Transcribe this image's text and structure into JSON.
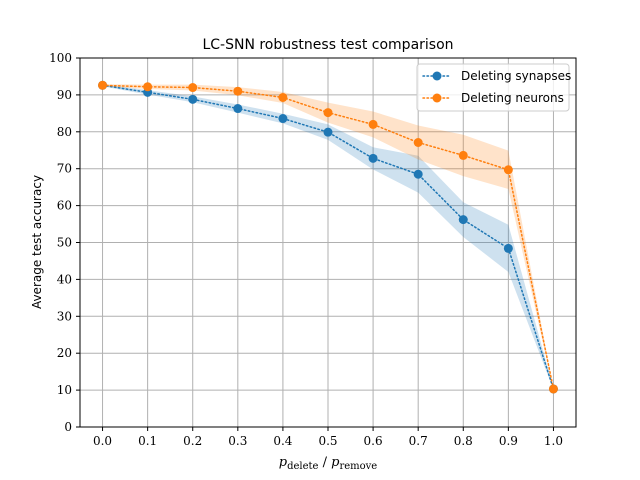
{
  "chart_data": {
    "type": "line",
    "title": "LC-SNN robustness test comparison",
    "xlabel": "p_delete / p_remove",
    "xlabel_main": "p",
    "xlabel_sub1": "delete",
    "xlabel_sep": " / ",
    "xlabel_sub2": "remove",
    "ylabel": "Average test accuracy",
    "xlim": [
      -0.05,
      1.05
    ],
    "ylim": [
      0,
      100
    ],
    "xticks": [
      0.0,
      0.1,
      0.2,
      0.3,
      0.4,
      0.5,
      0.6,
      0.7,
      0.8,
      0.9,
      1.0
    ],
    "xtick_labels": [
      "0.0",
      "0.1",
      "0.2",
      "0.3",
      "0.4",
      "0.5",
      "0.6",
      "0.7",
      "0.8",
      "0.9",
      "1.0"
    ],
    "yticks": [
      0,
      10,
      20,
      30,
      40,
      50,
      60,
      70,
      80,
      90,
      100
    ],
    "ytick_labels": [
      "0",
      "10",
      "20",
      "30",
      "40",
      "50",
      "60",
      "70",
      "80",
      "90",
      "100"
    ],
    "grid": true,
    "legend_position": "top-right",
    "x": [
      0.0,
      0.1,
      0.2,
      0.3,
      0.4,
      0.5,
      0.6,
      0.7,
      0.8,
      0.9,
      1.0
    ],
    "series": [
      {
        "name": "Deleting synapses",
        "color": "#1f77b4",
        "values": [
          92.6,
          90.7,
          88.8,
          86.3,
          83.6,
          79.9,
          72.8,
          68.5,
          56.2,
          48.4,
          10.3
        ],
        "lower": [
          92.3,
          90.1,
          88.0,
          85.2,
          82.3,
          77.8,
          69.8,
          63.5,
          51.5,
          42.0,
          10.1
        ],
        "upper": [
          92.9,
          91.3,
          89.6,
          87.4,
          84.9,
          82.0,
          75.8,
          73.5,
          60.9,
          54.8,
          10.5
        ]
      },
      {
        "name": "Deleting neurons",
        "color": "#ff7f0e",
        "values": [
          92.6,
          92.2,
          92.0,
          91.0,
          89.3,
          85.2,
          82.0,
          77.1,
          73.6,
          69.7,
          10.3
        ],
        "lower": [
          92.3,
          91.6,
          91.2,
          89.9,
          87.8,
          82.5,
          78.5,
          72.5,
          68.0,
          64.5,
          10.1
        ],
        "upper": [
          92.9,
          92.8,
          92.8,
          92.1,
          90.8,
          87.9,
          85.5,
          81.7,
          79.2,
          74.9,
          10.5
        ]
      }
    ]
  }
}
